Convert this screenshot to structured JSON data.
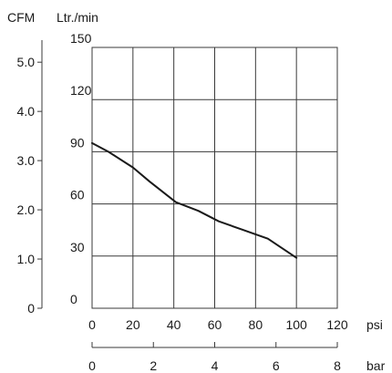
{
  "chart_data": {
    "type": "line",
    "title": "",
    "left_axis_unit": "CFM",
    "right_axis_unit": "Ltr./min",
    "x_unit_primary": "psi",
    "x_unit_secondary": "bar",
    "x_ticks_psi": [
      "0",
      "20",
      "40",
      "60",
      "80",
      "100",
      "120"
    ],
    "x_ticks_bar": [
      "0",
      "2",
      "4",
      "6",
      "8"
    ],
    "y_ticks_lpm": [
      "0",
      "30",
      "60",
      "90",
      "120",
      "150"
    ],
    "y_ticks_cfm": [
      "0",
      "1.0",
      "2.0",
      "3.0",
      "4.0",
      "5.0"
    ],
    "xlim_psi": [
      0,
      120
    ],
    "ylim_lpm": [
      0,
      150
    ],
    "xlim_bar": [
      0,
      8
    ],
    "ylim_cfm": [
      0,
      5.3
    ],
    "grid": true,
    "series": [
      {
        "x": [
          0,
          8,
          20,
          28,
          41,
          52,
          62,
          74,
          86,
          100
        ],
        "y": [
          95,
          90,
          81,
          73,
          61,
          56,
          50,
          45,
          40,
          29
        ]
      }
    ],
    "line_color": "#1a1a1a",
    "grid_color": "#3a3a3a"
  }
}
